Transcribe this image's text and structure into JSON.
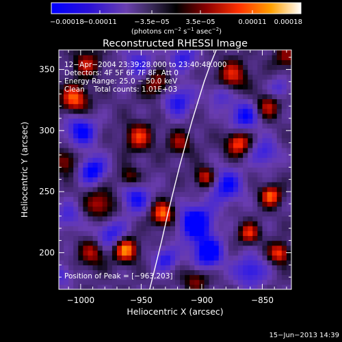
{
  "chart_data": {
    "type": "heatmap",
    "title": "Reconstructed RHESSI Image",
    "xlabel": "Heliocentric X (arcsec)",
    "ylabel": "Heliocentric Y (arcsec)",
    "xlim": [
      -1018,
      -826
    ],
    "ylim": [
      170,
      366
    ],
    "xticks": [
      -1000,
      -950,
      -900,
      -850
    ],
    "yticks": [
      200,
      250,
      300,
      350
    ],
    "xtick_labels": [
      "−1000",
      "−950",
      "−900",
      "−850"
    ],
    "ytick_labels": [
      "200",
      "250",
      "300",
      "350"
    ],
    "colorbar": {
      "min": -0.00018,
      "max": 0.00018,
      "ticks": [
        -0.00018,
        -0.00011,
        -3.5e-05,
        3.5e-05,
        0.00011,
        0.00018
      ],
      "tick_labels": [
        "−0.00018",
        "−0.00011",
        "−3.5e−05",
        "3.5e−05",
        "0.00011",
        "0.00018"
      ],
      "unit_main": "(photons cm",
      "unit_exp1": "−2",
      "unit_mid": " s",
      "unit_exp2": "−1",
      "unit_end": " asec",
      "unit_exp3": "−2",
      "unit_close": ")"
    },
    "limb_x": [
      -943,
      -938,
      -933,
      -928,
      -923,
      -918,
      -913,
      -908,
      -903,
      -898,
      -893,
      -888
    ],
    "limb_y": [
      170,
      190,
      210,
      232,
      252,
      272,
      290,
      308,
      324,
      340,
      354,
      366
    ],
    "peak": {
      "x": -963,
      "y": 203
    },
    "blobs": [
      {
        "x": -963,
        "y": 203,
        "v": 1.0,
        "r": 7
      },
      {
        "x": -932,
        "y": 232,
        "v": 0.9,
        "r": 7
      },
      {
        "x": -1005,
        "y": 326,
        "v": 0.85,
        "r": 8
      },
      {
        "x": -870,
        "y": 290,
        "v": 0.85,
        "r": 7
      },
      {
        "x": -843,
        "y": 247,
        "v": 0.85,
        "r": 6
      },
      {
        "x": -897,
        "y": 262,
        "v": 0.75,
        "r": 6
      },
      {
        "x": -836,
        "y": 200,
        "v": 0.8,
        "r": 6
      },
      {
        "x": -861,
        "y": 216,
        "v": 0.7,
        "r": 6
      },
      {
        "x": -952,
        "y": 295,
        "v": 0.7,
        "r": 8
      },
      {
        "x": -983,
        "y": 240,
        "v": 0.6,
        "r": 9
      },
      {
        "x": -937,
        "y": 338,
        "v": 0.6,
        "r": 8
      },
      {
        "x": -875,
        "y": 345,
        "v": 0.65,
        "r": 9
      },
      {
        "x": -995,
        "y": 355,
        "v": 0.55,
        "r": 8
      },
      {
        "x": -918,
        "y": 290,
        "v": 0.5,
        "r": 7
      },
      {
        "x": -1012,
        "y": 275,
        "v": 0.55,
        "r": 7
      },
      {
        "x": -990,
        "y": 200,
        "v": 0.55,
        "r": 8
      },
      {
        "x": -846,
        "y": 320,
        "v": 0.6,
        "r": 7
      },
      {
        "x": -905,
        "y": 178,
        "v": 0.5,
        "r": 7
      },
      {
        "x": -960,
        "y": 262,
        "v": 0.5,
        "r": 6
      },
      {
        "x": -830,
        "y": 360,
        "v": 0.5,
        "r": 7
      },
      {
        "x": -1000,
        "y": 300,
        "v": -0.75,
        "r": 9
      },
      {
        "x": -990,
        "y": 268,
        "v": -0.8,
        "r": 8
      },
      {
        "x": -975,
        "y": 215,
        "v": -0.65,
        "r": 9
      },
      {
        "x": -955,
        "y": 245,
        "v": -0.65,
        "r": 9
      },
      {
        "x": -905,
        "y": 225,
        "v": -1.0,
        "r": 10
      },
      {
        "x": -895,
        "y": 200,
        "v": -0.9,
        "r": 9
      },
      {
        "x": -893,
        "y": 202,
        "v": -0.9,
        "r": 3
      },
      {
        "x": -880,
        "y": 255,
        "v": -0.7,
        "r": 10
      },
      {
        "x": -865,
        "y": 312,
        "v": -0.7,
        "r": 9
      },
      {
        "x": -848,
        "y": 282,
        "v": -0.55,
        "r": 8
      },
      {
        "x": -860,
        "y": 185,
        "v": -0.65,
        "r": 9
      },
      {
        "x": -920,
        "y": 325,
        "v": -0.65,
        "r": 9
      },
      {
        "x": -885,
        "y": 330,
        "v": -0.45,
        "r": 7
      },
      {
        "x": -952,
        "y": 355,
        "v": -0.5,
        "r": 9
      },
      {
        "x": -915,
        "y": 360,
        "v": -0.55,
        "r": 8
      },
      {
        "x": -930,
        "y": 195,
        "v": -0.6,
        "r": 7
      },
      {
        "x": -1010,
        "y": 230,
        "v": -0.45,
        "r": 8
      },
      {
        "x": -1015,
        "y": 182,
        "v": -0.45,
        "r": 6
      },
      {
        "x": -835,
        "y": 335,
        "v": -0.45,
        "r": 6
      }
    ]
  },
  "annotations": {
    "time_range": "12−Apr−2004 23:39:28.000 to 23:40:48.000",
    "detectors": "Detectors: 4F 5F 6F 7F 8F, Att 0",
    "energy": "Energy Range: 25.0 − 50.0 keV",
    "clean": "Clean    Total counts: 1.01E+03",
    "peak_position": "Position of Peak = [−963,203]"
  },
  "footer": {
    "date": "15−Jun−2013 14:39"
  },
  "colors": {
    "background": "#000000",
    "text": "#ffffff",
    "limb": "#ffffff"
  }
}
